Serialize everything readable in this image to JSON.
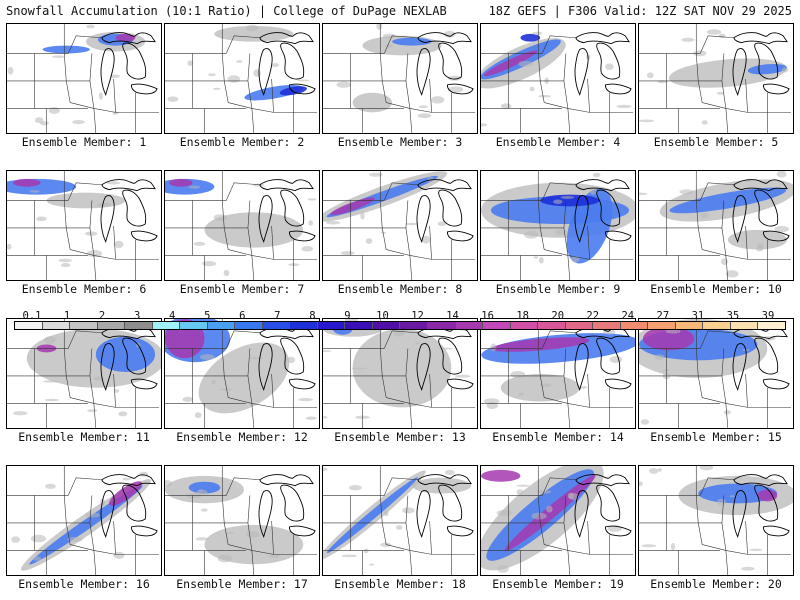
{
  "header": {
    "left": "Snowfall Accumulation (10:1 Ratio) | College of DuPage NEXLAB",
    "right": "18Z GEFS | F306 Valid: 12Z SAT NOV 29 2025"
  },
  "colorbar": {
    "labels": [
      "0.1",
      "1",
      "2",
      "3",
      "4",
      "5",
      "6",
      "7",
      "8",
      "9",
      "10",
      "12",
      "14",
      "16",
      "18",
      "20",
      "22",
      "24",
      "27",
      "31",
      "35",
      "39"
    ],
    "colors": [
      "#f4f4f4",
      "#dcdcdc",
      "#c4c4c4",
      "#a8a8a8",
      "#8e8e8e",
      "#a0f0f8",
      "#66c8f0",
      "#4aa0f0",
      "#3878f0",
      "#2850e8",
      "#1e30d8",
      "#2818d0",
      "#3a10b8",
      "#5010a8",
      "#6a1aa0",
      "#8a28a8",
      "#a638b0",
      "#c048b8",
      "#d050a8",
      "#d85898",
      "#e06888",
      "#e87a7c",
      "#f08c70",
      "#f4a070",
      "#f8b878",
      "#fad090",
      "#fce0b0",
      "#fef0d0"
    ]
  },
  "panels": [
    {
      "label": "Ensemble Member: 1"
    },
    {
      "label": "Ensemble Member: 2"
    },
    {
      "label": "Ensemble Member: 3"
    },
    {
      "label": "Ensemble Member: 4"
    },
    {
      "label": "Ensemble Member: 5"
    },
    {
      "label": "Ensemble Member: 6"
    },
    {
      "label": "Ensemble Member: 7"
    },
    {
      "label": "Ensemble Member: 8"
    },
    {
      "label": "Ensemble Member: 9"
    },
    {
      "label": "Ensemble Member: 10"
    },
    {
      "label": "Ensemble Member: 11"
    },
    {
      "label": "Ensemble Member: 12"
    },
    {
      "label": "Ensemble Member: 13"
    },
    {
      "label": "Ensemble Member: 14"
    },
    {
      "label": "Ensemble Member: 15"
    },
    {
      "label": "Ensemble Member: 16"
    },
    {
      "label": "Ensemble Member: 17"
    },
    {
      "label": "Ensemble Member: 18"
    },
    {
      "label": "Ensemble Member: 19"
    },
    {
      "label": "Ensemble Member: 20"
    }
  ],
  "colors": {
    "snow_gray": "#b8b8b8",
    "snow_blue": "#4a7cf0",
    "snow_deep": "#1e30d8",
    "snow_purple": "#a638b0"
  }
}
